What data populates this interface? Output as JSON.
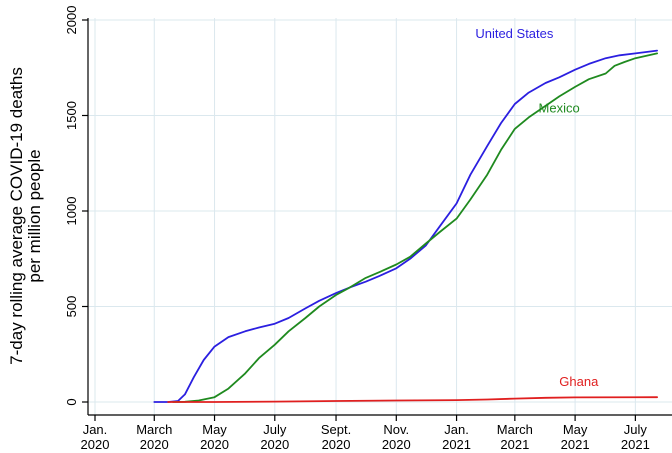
{
  "chart_data": {
    "type": "line",
    "title": "",
    "ylabel_lines": [
      "7-day rolling average COVID-19 deaths",
      "per million people"
    ],
    "xlabel": "",
    "ylim": [
      0,
      2000
    ],
    "yticks": [
      0,
      500,
      1000,
      1500,
      2000
    ],
    "xlim": [
      "2020-01-01",
      "2021-07-31"
    ],
    "xticks": [
      {
        "date": "2020-01-01",
        "line1": "Jan.",
        "line2": "2020"
      },
      {
        "date": "2020-03-01",
        "line1": "March",
        "line2": "2020"
      },
      {
        "date": "2020-05-01",
        "line1": "May",
        "line2": "2020"
      },
      {
        "date": "2020-07-01",
        "line1": "July",
        "line2": "2020"
      },
      {
        "date": "2020-09-01",
        "line1": "Sept.",
        "line2": "2020"
      },
      {
        "date": "2020-11-01",
        "line1": "Nov.",
        "line2": "2020"
      },
      {
        "date": "2021-01-01",
        "line1": "Jan.",
        "line2": "2021"
      },
      {
        "date": "2021-03-01",
        "line1": "March",
        "line2": "2021"
      },
      {
        "date": "2021-05-01",
        "line1": "May",
        "line2": "2021"
      },
      {
        "date": "2021-07-01",
        "line1": "July",
        "line2": "2021"
      }
    ],
    "grid": true,
    "series": [
      {
        "name": "United States",
        "color": "#2b1fe0",
        "points": [
          [
            "2020-03-01",
            0
          ],
          [
            "2020-03-15",
            0
          ],
          [
            "2020-03-25",
            5
          ],
          [
            "2020-04-01",
            40
          ],
          [
            "2020-04-10",
            130
          ],
          [
            "2020-04-20",
            220
          ],
          [
            "2020-05-01",
            290
          ],
          [
            "2020-05-15",
            340
          ],
          [
            "2020-06-01",
            370
          ],
          [
            "2020-06-15",
            390
          ],
          [
            "2020-07-01",
            410
          ],
          [
            "2020-07-15",
            440
          ],
          [
            "2020-08-01",
            490
          ],
          [
            "2020-08-15",
            530
          ],
          [
            "2020-09-01",
            570
          ],
          [
            "2020-09-15",
            600
          ],
          [
            "2020-10-01",
            630
          ],
          [
            "2020-10-15",
            660
          ],
          [
            "2020-11-01",
            700
          ],
          [
            "2020-11-15",
            750
          ],
          [
            "2020-12-01",
            820
          ],
          [
            "2020-12-15",
            920
          ],
          [
            "2021-01-01",
            1040
          ],
          [
            "2021-01-15",
            1190
          ],
          [
            "2021-02-01",
            1340
          ],
          [
            "2021-02-15",
            1460
          ],
          [
            "2021-03-01",
            1560
          ],
          [
            "2021-03-15",
            1620
          ],
          [
            "2021-04-01",
            1670
          ],
          [
            "2021-04-15",
            1700
          ],
          [
            "2021-05-01",
            1740
          ],
          [
            "2021-05-15",
            1770
          ],
          [
            "2021-06-01",
            1800
          ],
          [
            "2021-06-15",
            1815
          ],
          [
            "2021-07-01",
            1825
          ],
          [
            "2021-07-23",
            1840
          ]
        ]
      },
      {
        "name": "Mexico",
        "color": "#1f8a1f",
        "points": [
          [
            "2020-03-20",
            0
          ],
          [
            "2020-04-01",
            1
          ],
          [
            "2020-04-15",
            8
          ],
          [
            "2020-05-01",
            25
          ],
          [
            "2020-05-15",
            70
          ],
          [
            "2020-06-01",
            150
          ],
          [
            "2020-06-15",
            230
          ],
          [
            "2020-07-01",
            300
          ],
          [
            "2020-07-15",
            370
          ],
          [
            "2020-08-01",
            440
          ],
          [
            "2020-08-15",
            500
          ],
          [
            "2020-09-01",
            560
          ],
          [
            "2020-09-15",
            600
          ],
          [
            "2020-10-01",
            650
          ],
          [
            "2020-10-15",
            680
          ],
          [
            "2020-11-01",
            720
          ],
          [
            "2020-11-15",
            760
          ],
          [
            "2020-12-01",
            830
          ],
          [
            "2020-12-15",
            890
          ],
          [
            "2021-01-01",
            960
          ],
          [
            "2021-01-15",
            1060
          ],
          [
            "2021-02-01",
            1190
          ],
          [
            "2021-02-15",
            1320
          ],
          [
            "2021-03-01",
            1430
          ],
          [
            "2021-03-15",
            1490
          ],
          [
            "2021-04-01",
            1550
          ],
          [
            "2021-04-15",
            1600
          ],
          [
            "2021-05-01",
            1650
          ],
          [
            "2021-05-15",
            1690
          ],
          [
            "2021-06-01",
            1720
          ],
          [
            "2021-06-10",
            1760
          ],
          [
            "2021-06-20",
            1780
          ],
          [
            "2021-07-01",
            1800
          ],
          [
            "2021-07-23",
            1825
          ]
        ]
      },
      {
        "name": "Ghana",
        "color": "#e01f1f",
        "points": [
          [
            "2020-03-15",
            0
          ],
          [
            "2020-05-01",
            0
          ],
          [
            "2020-07-01",
            2
          ],
          [
            "2020-09-01",
            5
          ],
          [
            "2020-11-01",
            8
          ],
          [
            "2021-01-01",
            10
          ],
          [
            "2021-02-01",
            13
          ],
          [
            "2021-03-01",
            18
          ],
          [
            "2021-04-01",
            22
          ],
          [
            "2021-05-01",
            24
          ],
          [
            "2021-07-23",
            25
          ]
        ]
      }
    ]
  }
}
